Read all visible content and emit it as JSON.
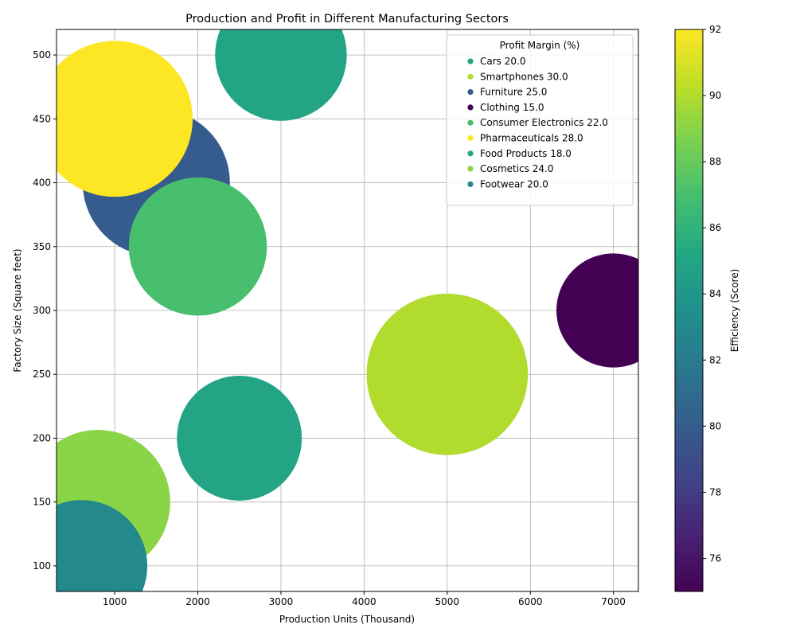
{
  "chart_data": {
    "type": "scatter",
    "title": "Production and Profit in Different Manufacturing Sectors",
    "xlabel": "Production Units (Thousand)",
    "ylabel": "Factory Size (Square feet)",
    "xlim": [
      300,
      7300
    ],
    "ylim": [
      80,
      520
    ],
    "xticks": [
      1000,
      2000,
      3000,
      4000,
      5000,
      6000,
      7000
    ],
    "yticks": [
      100,
      150,
      200,
      250,
      300,
      350,
      400,
      450,
      500
    ],
    "grid": true,
    "bubble_size_encodes": "Profit Margin (%)",
    "legend": {
      "title": "Profit Margin (%)",
      "position": "top-right"
    },
    "colorbar": {
      "label": "Efficiency (Score)",
      "range": [
        75,
        92
      ],
      "ticks": [
        76,
        78,
        80,
        82,
        84,
        86,
        88,
        90,
        92
      ],
      "colormap": "viridis"
    },
    "points": [
      {
        "label": "Cars 20.0",
        "sector": "Cars",
        "x": 3000,
        "y": 500,
        "profit_margin": 20.0,
        "efficiency": 85
      },
      {
        "label": "Smartphones 30.0",
        "sector": "Smartphones",
        "x": 5000,
        "y": 250,
        "profit_margin": 30.0,
        "efficiency": 90
      },
      {
        "label": "Furniture 25.0",
        "sector": "Furniture",
        "x": 1500,
        "y": 400,
        "profit_margin": 25.0,
        "efficiency": 80
      },
      {
        "label": "Clothing 15.0",
        "sector": "Clothing",
        "x": 7000,
        "y": 300,
        "profit_margin": 15.0,
        "efficiency": 75
      },
      {
        "label": "Consumer Electronics 22.0",
        "sector": "Consumer Electronics",
        "x": 2000,
        "y": 350,
        "profit_margin": 22.0,
        "efficiency": 87
      },
      {
        "label": "Pharmaceuticals 28.0",
        "sector": "Pharmaceuticals",
        "x": 1000,
        "y": 450,
        "profit_margin": 28.0,
        "efficiency": 92
      },
      {
        "label": "Food Products 18.0",
        "sector": "Food Products",
        "x": 2500,
        "y": 200,
        "profit_margin": 18.0,
        "efficiency": 85
      },
      {
        "label": "Cosmetics 24.0",
        "sector": "Cosmetics",
        "x": 800,
        "y": 150,
        "profit_margin": 24.0,
        "efficiency": 89
      },
      {
        "label": "Footwear 20.0",
        "sector": "Footwear",
        "x": 600,
        "y": 100,
        "profit_margin": 20.0,
        "efficiency": 83
      }
    ]
  }
}
